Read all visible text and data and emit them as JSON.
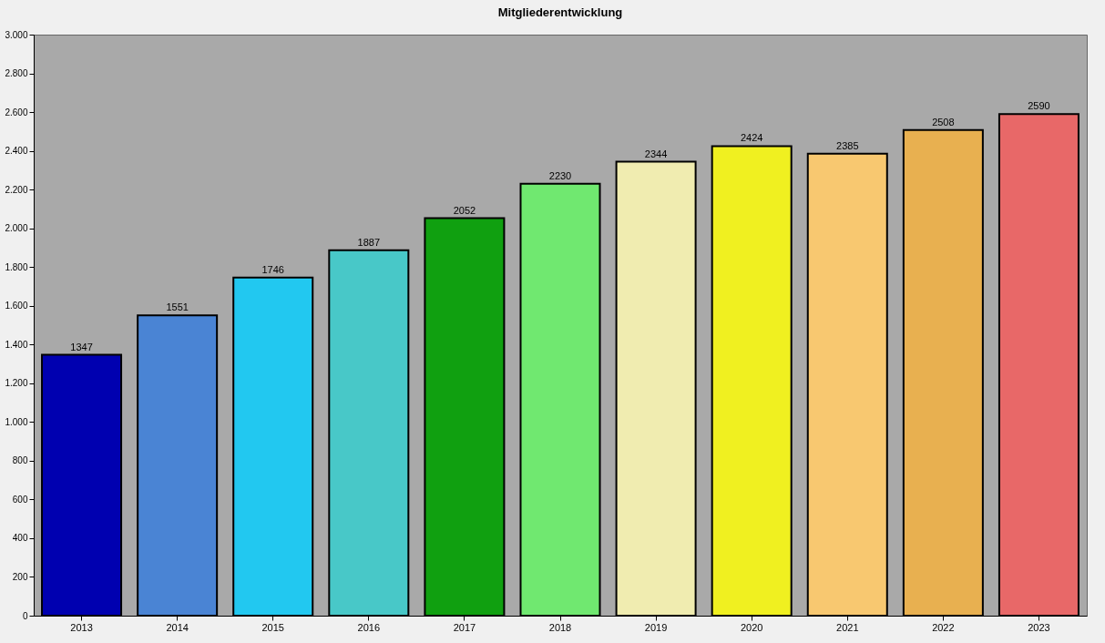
{
  "chart_data": {
    "type": "bar",
    "title": "Mitgliederentwicklung",
    "categories": [
      "2013",
      "2014",
      "2015",
      "2016",
      "2017",
      "2018",
      "2019",
      "2020",
      "2021",
      "2022",
      "2023"
    ],
    "values": [
      1347,
      1551,
      1746,
      1887,
      2052,
      2230,
      2344,
      2424,
      2385,
      2508,
      2590
    ],
    "colors": [
      "#0000b0",
      "#4a84d4",
      "#22c8f0",
      "#48c8c8",
      "#10a010",
      "#70e870",
      "#f0ecb0",
      "#f0f020",
      "#f8c870",
      "#e8b050",
      "#e86868"
    ],
    "ylim": [
      0,
      3000
    ],
    "yticks": [
      0,
      200,
      400,
      600,
      800,
      {
        "value": 1000,
        "label": "1.000"
      },
      {
        "value": 1200,
        "label": "1.200"
      },
      {
        "value": 1400,
        "label": "1.400"
      },
      {
        "value": 1600,
        "label": "1.600"
      },
      {
        "value": 1800,
        "label": "1.800"
      },
      {
        "value": 2000,
        "label": "2.000"
      },
      {
        "value": 2200,
        "label": "2.200"
      },
      {
        "value": 2400,
        "label": "2.400"
      },
      {
        "value": 2600,
        "label": "2.600"
      },
      {
        "value": 2800,
        "label": "2.800"
      },
      {
        "value": 3000,
        "label": "3.000"
      }
    ],
    "data_labels": true,
    "grid": false
  }
}
